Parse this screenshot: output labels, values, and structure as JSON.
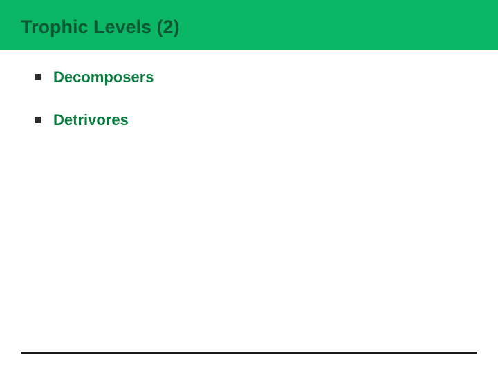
{
  "slide": {
    "title": "Trophic Levels (2)",
    "bullets": [
      {
        "text": "Decomposers"
      },
      {
        "text": "Detrivores"
      }
    ]
  },
  "style": {
    "header_bg": "#0bb664",
    "title_color": "#0c5834",
    "bullet_marker_color": "#2a2a2a",
    "bullet_text_color": "#0b7a3e",
    "footer_line_color": "#1a1a1a",
    "body_bg": "#ffffff"
  }
}
